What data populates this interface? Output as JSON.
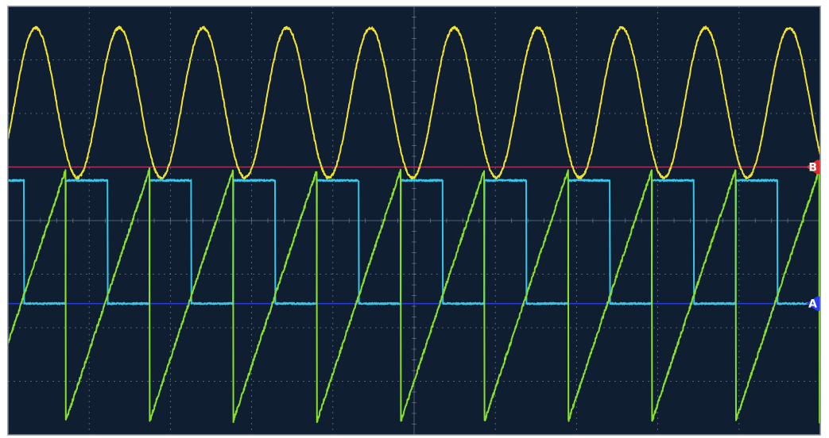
{
  "chart_data": {
    "type": "line",
    "title": "",
    "grid": true,
    "x": {
      "divisions": 10,
      "range": [
        0,
        10
      ],
      "unit": "div"
    },
    "y": {
      "divisions": 8,
      "range": [
        0,
        8
      ],
      "unit": "div"
    },
    "colors": {
      "screen": "#0f1f31",
      "grid": "#8a9aa8",
      "frame": "#7f8a96",
      "outer_border": "#ffffff"
    },
    "series": [
      {
        "key": "yellow_sine",
        "color": "#f2e230",
        "shape": "sine",
        "cycles": 9.7,
        "amplitude_div": 1.4,
        "center_div": 1.8,
        "phase_cycles": -0.08
      },
      {
        "key": "cyan_square",
        "color": "#37c6e8",
        "shape": "square",
        "cycles": 9.7,
        "high_div": 3.25,
        "low_div": 5.55,
        "duty": 0.5,
        "phase_cycles": 0.31
      },
      {
        "key": "green_ramp",
        "color": "#89e02a",
        "shape": "sawtooth",
        "cycles": 9.7,
        "high_div": 3.05,
        "low_div": 7.75,
        "phase_cycles": 0.31
      }
    ],
    "reference_markers": [
      {
        "label": "B",
        "level_div": 3.0,
        "color": "#e22b2b",
        "line_color": "#c0305a"
      },
      {
        "label": "A",
        "level_div": 5.55,
        "color": "#2a3bf0",
        "line_color": "#2a3bf0"
      }
    ]
  }
}
